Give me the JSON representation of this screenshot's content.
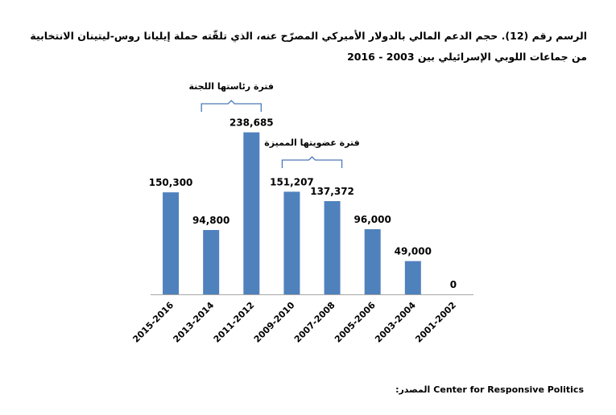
{
  "title": "الرسم رقم (12). حجم الدعم المالي بالدولار الأميركي المصرّح عنه، الذي تلقّته حملة إيليانا روس-ليتينان الانتخابية من جماعات اللوبي الإسرائيلي بين 2003 - 2016",
  "source": {
    "label": "المصدر:",
    "value": "Center for Responsive Politics"
  },
  "colors": {
    "bar": "#4f81bd",
    "brace": "#4a78b8",
    "axis": "#a6a6a6"
  },
  "chart_data": {
    "type": "bar",
    "categories": [
      "2015-2016",
      "2013-2014",
      "2011-2012",
      "2009-2010",
      "2007-2008",
      "2005-2006",
      "2003-2004",
      "2001-2002"
    ],
    "values": [
      150300,
      94800,
      238685,
      151207,
      137372,
      96000,
      49000,
      0
    ],
    "value_labels": [
      "150,300",
      "94,800",
      "238,685",
      "151,207",
      "137,372",
      "96,000",
      "49,000",
      "0"
    ],
    "ylim": [
      0,
      250000
    ],
    "grid": false,
    "annotations": [
      {
        "text": "فترة رئاستها اللجنة",
        "from": "2013-2014",
        "to": "2011-2012"
      },
      {
        "text": "فترة عضويتها المميزة",
        "from": "2009-2010",
        "to": "2007-2008"
      }
    ]
  }
}
